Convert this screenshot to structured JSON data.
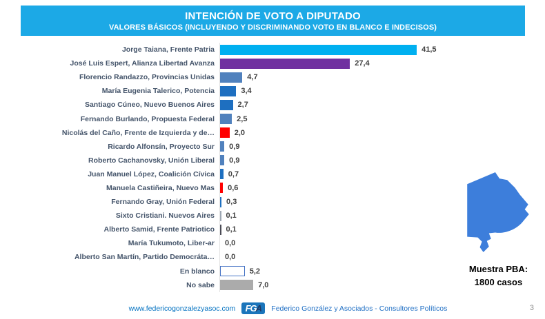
{
  "header": {
    "title": "INTENCIÓN DE VOTO A DIPUTADO",
    "subtitle": "VALORES BÁSICOS (INCLUYENDO Y DISCRIMINANDO VOTO EN BLANCO E INDECISOS)",
    "bg_color": "#1CA9E6"
  },
  "chart_data": {
    "type": "bar",
    "orientation": "horizontal",
    "title": "Intención de voto a diputado - valores básicos",
    "xlim": [
      0,
      45
    ],
    "grid": false,
    "decimal_style": "comma",
    "categories": [
      "Jorge Taiana, Frente Patria",
      "José Luis Espert, Alianza Libertad Avanza",
      "Florencio Randazzo, Provincias Unidas",
      "María Eugenia Talerico, Potencia",
      "Santiago Cúneo, Nuevo Buenos Aires",
      "Fernando Burlando, Propuesta Federal",
      "Nicolás del Caño, Frente de Izquierda y de…",
      "Ricardo Alfonsín, Proyecto Sur",
      "Roberto Cachanovsky, Unión Liberal",
      "Juan Manuel López, Coalición Cívica",
      "Manuela Castiñeira, Nuevo Mas",
      "Fernando Gray, Unión Federal",
      "Sixto Cristiani. Nuevos Aires",
      "Alberto Samid, Frente Patriotico",
      "María Tukumoto, Liber-ar",
      "Alberto San Martín, Partido Democráta…",
      "En blanco",
      "No sabe"
    ],
    "values": [
      41.5,
      27.4,
      4.7,
      3.4,
      2.7,
      2.5,
      2.0,
      0.9,
      0.9,
      0.7,
      0.6,
      0.3,
      0.1,
      0.1,
      0.0,
      0.0,
      5.2,
      7.0
    ],
    "value_labels": [
      "41,5",
      "27,4",
      "4,7",
      "3,4",
      "2,7",
      "2,5",
      "2,0",
      "0,9",
      "0,9",
      "0,7",
      "0,6",
      "0,3",
      "0,1",
      "0,1",
      "0,0",
      "0,0",
      "5,2",
      "7,0"
    ],
    "bar_colors": [
      {
        "fill": "#00B0F0"
      },
      {
        "fill": "#7030A0"
      },
      {
        "fill": "#5081BD"
      },
      {
        "fill": "#1E6FC0"
      },
      {
        "fill": "#1E6FC0"
      },
      {
        "fill": "#5081BD"
      },
      {
        "fill": "#FF0000"
      },
      {
        "fill": "#5081BD"
      },
      {
        "fill": "#5081BD"
      },
      {
        "fill": "#1E6FC0"
      },
      {
        "fill": "#FF0000"
      },
      {
        "fill": "#1E6FC0"
      },
      {
        "fill": "#9DA7B3"
      },
      {
        "fill": "#4A4A55"
      },
      {
        "fill": "none"
      },
      {
        "fill": "none"
      },
      {
        "fill": "#FFFFFF",
        "border": "#4472C4"
      },
      {
        "fill": "#ABABAB"
      }
    ]
  },
  "map": {
    "region": "Provincia de Buenos Aires",
    "color": "#3D7EDB",
    "sample_label": "Muestra PBA:",
    "sample_size": "1800 casos"
  },
  "footer": {
    "url": "www.federicogonzalezyasoc.com",
    "logo_fg": "FG",
    "logo_a": "A",
    "company": "Federico González y Asociados - Consultores Políticos",
    "page": "3"
  }
}
